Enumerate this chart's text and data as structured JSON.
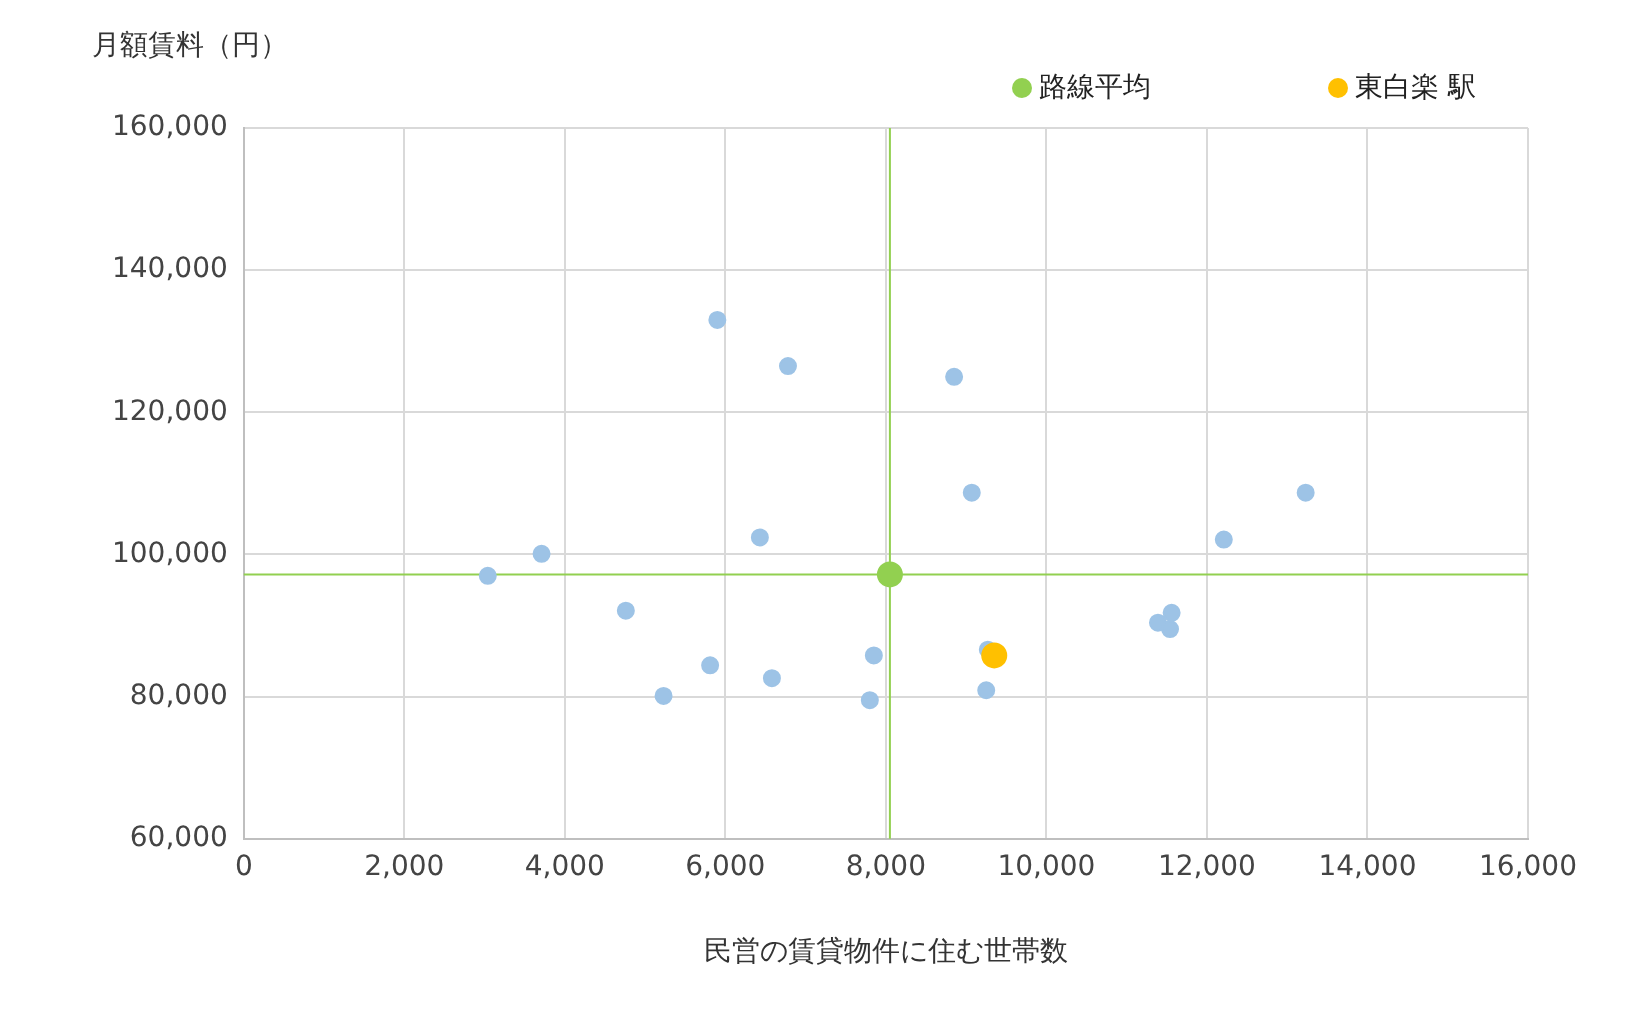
{
  "chart_data": {
    "type": "scatter",
    "xlabel": "民営の賃貸物件に住む世帯数",
    "ylabel": "月額賃料（円）",
    "xlim": [
      0,
      16000
    ],
    "xticks": [
      0,
      {
        "value": 2000,
        "label": "2,000"
      },
      {
        "value": 4000,
        "label": "4,000"
      },
      {
        "value": 6000,
        "label": "6,000"
      },
      {
        "value": 8000,
        "label": "8,000"
      },
      {
        "value": 10000,
        "label": "10,000"
      },
      {
        "value": 12000,
        "label": "12,000"
      },
      {
        "value": 14000,
        "label": "14,000"
      },
      {
        "value": 16000,
        "label": "16,000"
      }
    ],
    "ylim": [
      60000,
      160000
    ],
    "yticks": [
      {
        "value": 60000,
        "label": "60,000"
      },
      {
        "value": 80000,
        "label": "80,000"
      },
      {
        "value": 100000,
        "label": "100,000"
      },
      {
        "value": 120000,
        "label": "120,000"
      },
      {
        "value": 140000,
        "label": "140,000"
      },
      {
        "value": 160000,
        "label": "160,000"
      }
    ],
    "grid": true,
    "legend": "top right",
    "marker": "circle",
    "series": [
      {
        "color": "#9dc3e6",
        "x": [
          5900,
          6780,
          8850,
          9070,
          6430,
          3710,
          3040,
          4760,
          5810,
          6580,
          5230,
          7850,
          7800,
          9250,
          11390,
          11560,
          11540,
          12210,
          13230,
          9270
        ],
        "values": [
          133000,
          126500,
          125000,
          108700,
          102400,
          100100,
          97000,
          92100,
          84400,
          82600,
          80100,
          85800,
          79500,
          80900,
          90400,
          91800,
          89500,
          102100,
          108700,
          86600
        ]
      },
      {
        "name": "路線平均",
        "color": "#92d050",
        "x": [
          8050
        ],
        "values": [
          97200
        ]
      },
      {
        "name": "東白楽 駅",
        "color": "#ffc000",
        "x": [
          9350
        ],
        "values": [
          85800
        ]
      }
    ],
    "ref_lines": [
      {
        "axis": "x",
        "value": 8050,
        "color": "#92d050"
      },
      {
        "axis": "y",
        "value": 97200,
        "color": "#92d050"
      }
    ]
  }
}
